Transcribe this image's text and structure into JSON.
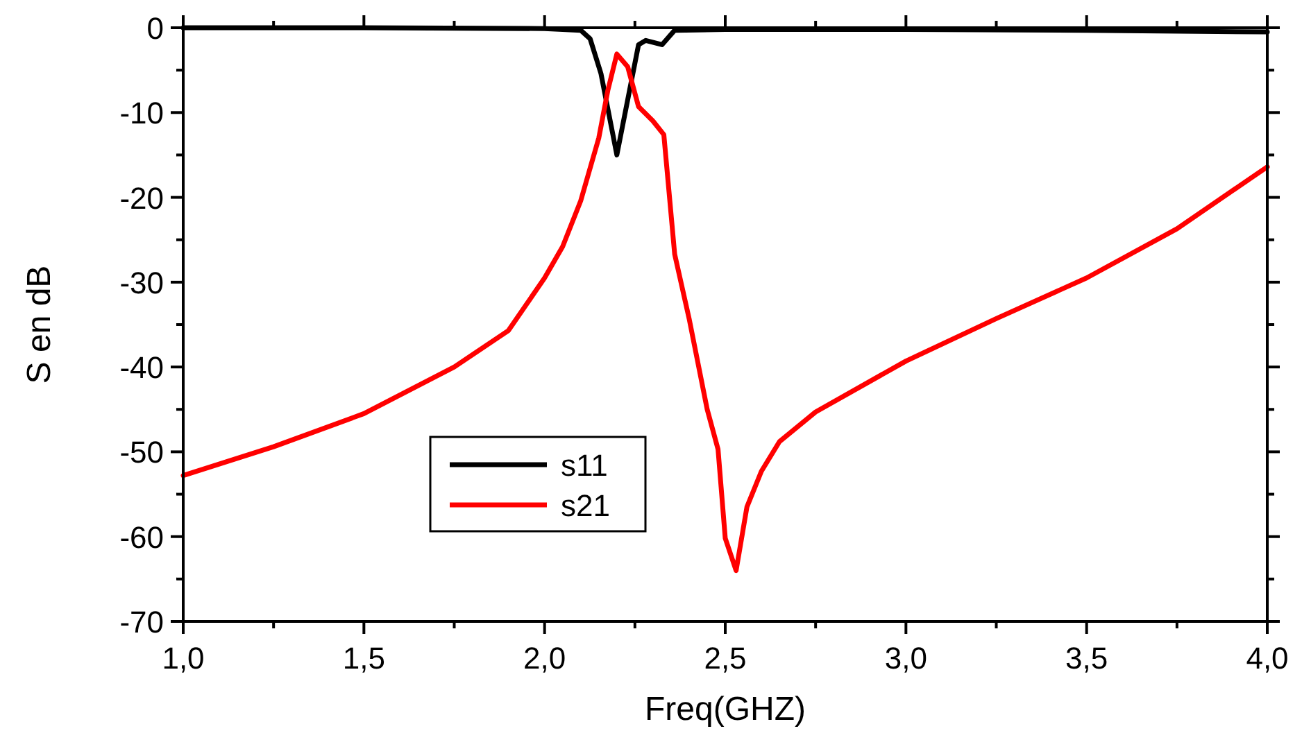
{
  "chart_data": {
    "type": "line",
    "xlabel": "Freq(GHZ)",
    "ylabel": "S en dB",
    "xlim": [
      1,
      4
    ],
    "ylim": [
      -70,
      0
    ],
    "xticks": [
      {
        "value": 1,
        "label": "1,0"
      },
      {
        "value": 1.25,
        "label": null
      },
      {
        "value": 1.5,
        "label": "1,5"
      },
      {
        "value": 1.75,
        "label": null
      },
      {
        "value": 2,
        "label": "2,0"
      },
      {
        "value": 2.25,
        "label": null
      },
      {
        "value": 2.5,
        "label": "2,5"
      },
      {
        "value": 2.75,
        "label": null
      },
      {
        "value": 3,
        "label": "3,0"
      },
      {
        "value": 3.25,
        "label": null
      },
      {
        "value": 3.5,
        "label": "3,5"
      },
      {
        "value": 3.75,
        "label": null
      },
      {
        "value": 4,
        "label": "4,0"
      }
    ],
    "yticks": [
      -70,
      {
        "value": -65,
        "label": null
      },
      -60,
      {
        "value": -55,
        "label": null
      },
      -50,
      {
        "value": -45,
        "label": null
      },
      -40,
      {
        "value": -35,
        "label": null
      },
      -30,
      {
        "value": -25,
        "label": null
      },
      -20,
      {
        "value": -15,
        "label": null
      },
      -10,
      {
        "value": -5,
        "label": null
      },
      0
    ],
    "grid": false,
    "legend": "bottom left",
    "line_style": "solid",
    "marker": "none",
    "series": [
      {
        "name": "s11",
        "color": "#000000",
        "x": [
          1,
          1.5,
          2,
          2.05,
          2.1,
          2.126,
          2.156,
          2.2,
          2.26,
          2.28,
          2.325,
          2.36,
          2.5,
          3,
          3.5,
          4
        ],
        "values": [
          0,
          0,
          -0.1,
          -0.2,
          -0.3,
          -1.3,
          -5.4,
          -15,
          -2,
          -1.5,
          -2,
          -0.3,
          -0.2,
          -0.2,
          -0.3,
          -0.5
        ]
      },
      {
        "name": "s21",
        "color": "#ff0000",
        "x": [
          1,
          1.25,
          1.5,
          1.75,
          1.9,
          2,
          2.05,
          2.1,
          2.15,
          2.175,
          2.2,
          2.23,
          2.26,
          2.3,
          2.33,
          2.36,
          2.4,
          2.45,
          2.48,
          2.5,
          2.53,
          2.56,
          2.6,
          2.65,
          2.75,
          3,
          3.25,
          3.5,
          3.75,
          4
        ],
        "values": [
          -52.8,
          -49.4,
          -45.5,
          -40,
          -35.7,
          -29.5,
          -25.8,
          -20.4,
          -13,
          -7.4,
          -3.1,
          -4.6,
          -9.3,
          -11,
          -12.6,
          -26.7,
          -34.3,
          -45,
          -49.7,
          -60.2,
          -64,
          -56.5,
          -52.3,
          -48.8,
          -45.3,
          -39.3,
          -34.3,
          -29.5,
          -23.7,
          -16.4
        ]
      }
    ]
  }
}
